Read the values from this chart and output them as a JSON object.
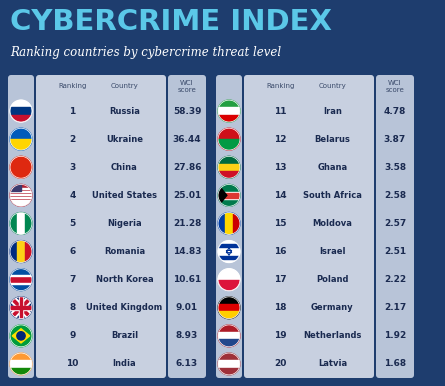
{
  "title": "CYBERCRIME INDEX",
  "subtitle": "Ranking countries by cybercrime threat level",
  "bg_color": "#1e3d6e",
  "title_color": "#5bc8e8",
  "subtitle_color": "#ffffff",
  "flag_col_bg": "#b8c4d8",
  "main_col_bg": "#c8d0e0",
  "wci_col_bg": "#b8c4d8",
  "header_text_color": "#3a4a6a",
  "data_text_color": "#1a2a50",
  "left_table": [
    {
      "rank": 1,
      "country": "Russia",
      "score": "58.39"
    },
    {
      "rank": 2,
      "country": "Ukraine",
      "score": "36.44"
    },
    {
      "rank": 3,
      "country": "China",
      "score": "27.86"
    },
    {
      "rank": 4,
      "country": "United States",
      "score": "25.01"
    },
    {
      "rank": 5,
      "country": "Nigeria",
      "score": "21.28"
    },
    {
      "rank": 6,
      "country": "Romania",
      "score": "14.83"
    },
    {
      "rank": 7,
      "country": "North Korea",
      "score": "10.61"
    },
    {
      "rank": 8,
      "country": "United Kingdom",
      "score": "9.01"
    },
    {
      "rank": 9,
      "country": "Brazil",
      "score": "8.93"
    },
    {
      "rank": 10,
      "country": "India",
      "score": "6.13"
    }
  ],
  "right_table": [
    {
      "rank": 11,
      "country": "Iran",
      "score": "4.78"
    },
    {
      "rank": 12,
      "country": "Belarus",
      "score": "3.87"
    },
    {
      "rank": 13,
      "country": "Ghana",
      "score": "3.58"
    },
    {
      "rank": 14,
      "country": "South Africa",
      "score": "2.58"
    },
    {
      "rank": 15,
      "country": "Moldova",
      "score": "2.57"
    },
    {
      "rank": 16,
      "country": "Israel",
      "score": "2.51"
    },
    {
      "rank": 17,
      "country": "Poland",
      "score": "2.22"
    },
    {
      "rank": 18,
      "country": "Germany",
      "score": "2.17"
    },
    {
      "rank": 19,
      "country": "Netherlands",
      "score": "1.92"
    },
    {
      "rank": 20,
      "country": "Latvia",
      "score": "1.68"
    }
  ],
  "flag_colors_left": [
    [
      "#c8102e",
      "#ffffff",
      "#0032a0"
    ],
    [
      "#005bbb",
      "#ffd500"
    ],
    [
      "#de2910",
      "#ffde00"
    ],
    [
      "#b22234",
      "#ffffff",
      "#3c3b6e"
    ],
    [
      "#008751",
      "#ffffff",
      "#008751"
    ],
    [
      "#002b7f",
      "#fcd116",
      "#ce1126"
    ],
    [
      "#024fa2",
      "#red",
      "#000000"
    ],
    [
      "#012169",
      "#ffffff",
      "#c8102e"
    ],
    [
      "#009c3b",
      "#ffdf00",
      "#009c3b"
    ],
    [
      "#ff9933",
      "#ffffff",
      "#138808"
    ]
  ],
  "flag_colors_right": [
    [
      "#239f40",
      "#ffffff",
      "#c8102e"
    ],
    [
      "#cf101a",
      "#008000"
    ],
    [
      "#006b3f",
      "#fcd116",
      "#ce1126"
    ],
    [
      "#007a4d",
      "#000000",
      "#de3831"
    ],
    [
      "#003DA5",
      "#ffd700",
      "#cc0001"
    ],
    [
      "#ffffff",
      "#003399"
    ],
    [
      "#dc143c",
      "#ffffff"
    ],
    [
      "#000000",
      "#dd0000",
      "#ffce00"
    ],
    [
      "#ae1c28",
      "#ffffff",
      "#21468b"
    ],
    [
      "#9e3039",
      "#ffffff",
      "#9e3039"
    ]
  ]
}
